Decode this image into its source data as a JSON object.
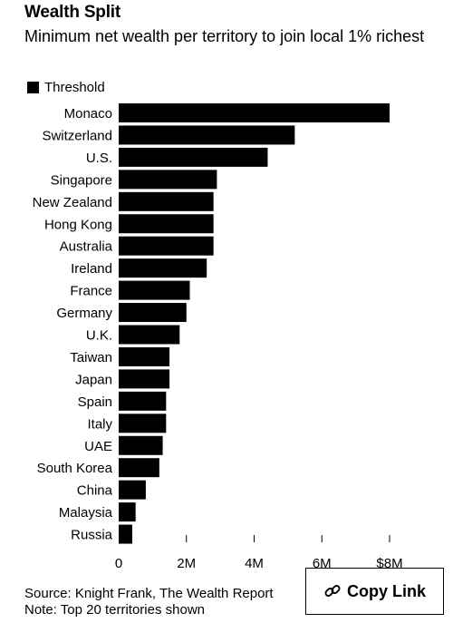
{
  "title": "Wealth Split",
  "subtitle": "Minimum net wealth per territory to join local 1% richest",
  "legend": {
    "label": "Threshold"
  },
  "footer": {
    "source": "Source: Knight Frank, The Wealth Report",
    "note": "Note: Top 20 territories shown"
  },
  "copy_link": {
    "label": "Copy Link",
    "icon": "link-icon"
  },
  "colors": {
    "bar": "#000000",
    "background": "#ffffff"
  },
  "chart_data": {
    "type": "bar",
    "orientation": "horizontal",
    "title": "Wealth Split",
    "subtitle": "Minimum net wealth per territory to join local 1% richest",
    "series": [
      {
        "name": "Threshold",
        "values": [
          8.0,
          5.2,
          4.4,
          2.9,
          2.8,
          2.8,
          2.8,
          2.6,
          2.1,
          2.0,
          1.8,
          1.5,
          1.5,
          1.4,
          1.4,
          1.3,
          1.2,
          0.8,
          0.5,
          0.4
        ]
      }
    ],
    "categories": [
      "Monaco",
      "Switzerland",
      "U.S.",
      "Singapore",
      "New Zealand",
      "Hong Kong",
      "Australia",
      "Ireland",
      "France",
      "Germany",
      "U.K.",
      "Taiwan",
      "Japan",
      "Spain",
      "Italy",
      "UAE",
      "South Korea",
      "China",
      "Malaysia",
      "Russia"
    ],
    "x_ticks": [
      0,
      2,
      4,
      6,
      8
    ],
    "x_tick_labels": [
      "0",
      "2M",
      "4M",
      "6M",
      "$8M"
    ],
    "xlim": [
      0,
      8
    ],
    "xlabel": "",
    "ylabel": "",
    "grid": false,
    "legend_position": "top-left"
  }
}
